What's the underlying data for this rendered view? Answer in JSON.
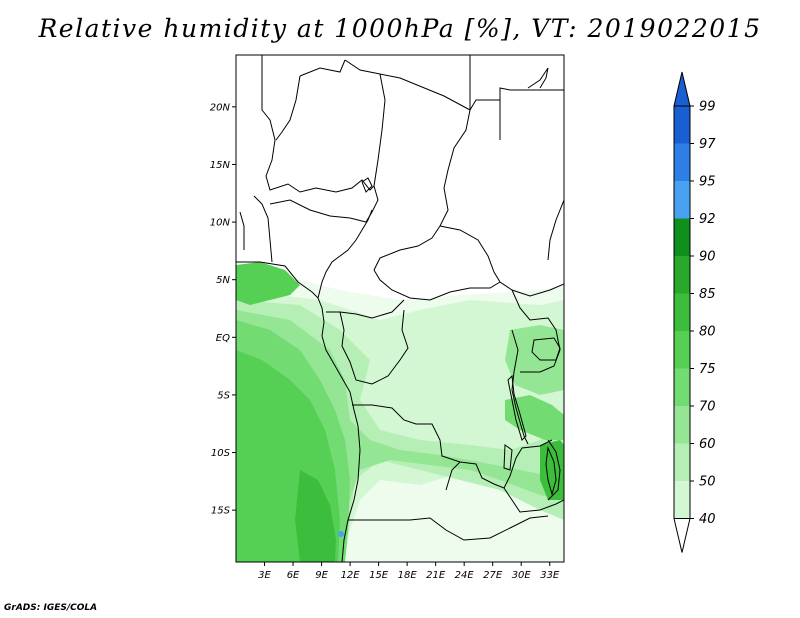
{
  "title": "Relative humidity at 1000hPa [%], VT: 2019022015",
  "credit": "GrADS: IGES/COLA",
  "map": {
    "lat_range": [
      -19.5,
      24.5
    ],
    "lon_range": [
      0,
      34.5
    ],
    "lat_ticks": [
      {
        "value": 20,
        "label": "20N"
      },
      {
        "value": 15,
        "label": "15N"
      },
      {
        "value": 10,
        "label": "10N"
      },
      {
        "value": 5,
        "label": "5N"
      },
      {
        "value": 0,
        "label": "EQ"
      },
      {
        "value": -5,
        "label": "5S"
      },
      {
        "value": -10,
        "label": "10S"
      },
      {
        "value": -15,
        "label": "15S"
      }
    ],
    "lon_ticks": [
      {
        "value": 3,
        "label": "3E"
      },
      {
        "value": 6,
        "label": "6E"
      },
      {
        "value": 9,
        "label": "9E"
      },
      {
        "value": 12,
        "label": "12E"
      },
      {
        "value": 15,
        "label": "15E"
      },
      {
        "value": 18,
        "label": "18E"
      },
      {
        "value": 21,
        "label": "21E"
      },
      {
        "value": 24,
        "label": "24E"
      },
      {
        "value": 27,
        "label": "27E"
      },
      {
        "value": 30,
        "label": "30E"
      },
      {
        "value": 33,
        "label": "33E"
      }
    ]
  },
  "colorbar": {
    "labels": [
      "99",
      "97",
      "95",
      "92",
      "90",
      "85",
      "80",
      "75",
      "70",
      "60",
      "50",
      "40"
    ],
    "colors": [
      "#1a5fd1",
      "#2d7fe6",
      "#4aa1f0",
      "#0f8f1b",
      "#2aa82a",
      "#3cbe3c",
      "#55d055",
      "#72dc72",
      "#94e694",
      "#b5efb5",
      "#d2f7d2",
      "#eefcee",
      "#ffffff"
    ],
    "top_color": "#1a5fd1"
  }
}
